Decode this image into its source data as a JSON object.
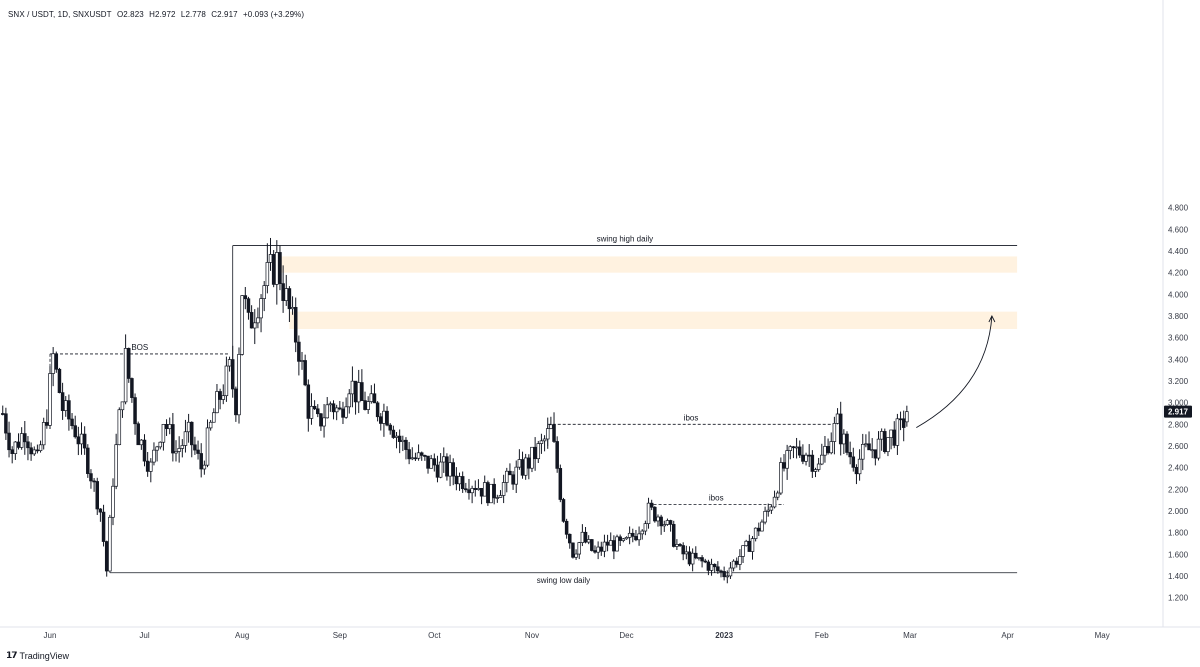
{
  "header": {
    "symbol": "SNX / USDT, 1D, SNXUSDT",
    "open": "O2.823",
    "high": "H2.972",
    "low": "L2.778",
    "close": "C2.917",
    "change": "+0.093 (+3.29%)"
  },
  "branding": {
    "logo_icon": "tradingview-logo-icon",
    "name": "TradingView"
  },
  "colors": {
    "candle": "#131722",
    "zone": "#fff2e0",
    "line": "#131722",
    "axis_text": "#363a45",
    "price_label_bg": "#131722"
  },
  "chart_data": {
    "type": "candlestick",
    "title": "SNX / USDT, 1D, SNXUSDT",
    "yticks": [
      "4.800",
      "4.600",
      "4.400",
      "4.200",
      "4.000",
      "3.800",
      "3.600",
      "3.400",
      "3.200",
      "3.000",
      "2.800",
      "2.600",
      "2.400",
      "2.200",
      "2.000",
      "1.800",
      "1.600",
      "1.400",
      "1.200"
    ],
    "ylim": [
      1.08,
      4.95
    ],
    "xticks": [
      {
        "label": "Jun",
        "date": "2022-06-01"
      },
      {
        "label": "Jul",
        "date": "2022-07-01"
      },
      {
        "label": "Aug",
        "date": "2022-08-01"
      },
      {
        "label": "Sep",
        "date": "2022-09-01"
      },
      {
        "label": "Oct",
        "date": "2022-10-01"
      },
      {
        "label": "Nov",
        "date": "2022-11-01"
      },
      {
        "label": "Dec",
        "date": "2022-12-01"
      },
      {
        "label": "2023",
        "date": "2023-01-01"
      },
      {
        "label": "Feb",
        "date": "2023-02-01"
      },
      {
        "label": "Mar",
        "date": "2023-03-01"
      },
      {
        "label": "Apr",
        "date": "2023-04-01"
      },
      {
        "label": "May",
        "date": "2023-05-01"
      }
    ],
    "last_price": "2.917",
    "path_points": [
      [
        "2022-05-17",
        2.9
      ],
      [
        "2022-05-20",
        2.55
      ],
      [
        "2022-05-24",
        2.75
      ],
      [
        "2022-05-28",
        2.45
      ],
      [
        "2022-05-31",
        2.9
      ],
      [
        "2022-06-02",
        3.42
      ],
      [
        "2022-06-05",
        2.95
      ],
      [
        "2022-06-09",
        2.75
      ],
      [
        "2022-06-13",
        2.45
      ],
      [
        "2022-06-17",
        2.0
      ],
      [
        "2022-06-19",
        1.45
      ],
      [
        "2022-06-21",
        2.3
      ],
      [
        "2022-06-25",
        3.4
      ],
      [
        "2022-06-29",
        2.7
      ],
      [
        "2022-07-03",
        2.4
      ],
      [
        "2022-07-07",
        2.85
      ],
      [
        "2022-07-11",
        2.55
      ],
      [
        "2022-07-15",
        2.7
      ],
      [
        "2022-07-19",
        2.4
      ],
      [
        "2022-07-23",
        2.9
      ],
      [
        "2022-07-28",
        3.3
      ],
      [
        "2022-07-30",
        3.0
      ],
      [
        "2022-08-01",
        4.05
      ],
      [
        "2022-08-03",
        3.7
      ],
      [
        "2022-08-06",
        3.95
      ],
      [
        "2022-08-09",
        4.15
      ],
      [
        "2022-08-12",
        4.3
      ],
      [
        "2022-08-15",
        3.95
      ],
      [
        "2022-08-19",
        3.5
      ],
      [
        "2022-08-22",
        2.95
      ],
      [
        "2022-08-25",
        2.8
      ],
      [
        "2022-08-29",
        3.0
      ],
      [
        "2022-09-01",
        2.9
      ],
      [
        "2022-09-04",
        3.2
      ],
      [
        "2022-09-08",
        3.0
      ],
      [
        "2022-09-12",
        2.95
      ],
      [
        "2022-09-16",
        2.9
      ],
      [
        "2022-09-20",
        2.65
      ],
      [
        "2022-09-24",
        2.5
      ],
      [
        "2022-09-28",
        2.45
      ],
      [
        "2022-10-04",
        2.4
      ],
      [
        "2022-10-09",
        2.3
      ],
      [
        "2022-10-14",
        2.25
      ],
      [
        "2022-10-19",
        2.15
      ],
      [
        "2022-10-23",
        2.25
      ],
      [
        "2022-10-27",
        2.35
      ],
      [
        "2022-10-31",
        2.45
      ],
      [
        "2022-11-04",
        2.6
      ],
      [
        "2022-11-07",
        2.75
      ],
      [
        "2022-11-09",
        2.4
      ],
      [
        "2022-11-11",
        1.95
      ],
      [
        "2022-11-14",
        1.62
      ],
      [
        "2022-11-17",
        1.75
      ],
      [
        "2022-11-21",
        1.6
      ],
      [
        "2022-11-25",
        1.7
      ],
      [
        "2022-11-30",
        1.68
      ],
      [
        "2022-12-04",
        1.8
      ],
      [
        "2022-12-08",
        2.0
      ],
      [
        "2022-12-12",
        1.95
      ],
      [
        "2022-12-15",
        1.8
      ],
      [
        "2022-12-18",
        1.62
      ],
      [
        "2022-12-22",
        1.55
      ],
      [
        "2022-12-26",
        1.52
      ],
      [
        "2022-12-29",
        1.46
      ],
      [
        "2023-01-01",
        1.42
      ],
      [
        "2023-01-04",
        1.52
      ],
      [
        "2023-01-08",
        1.65
      ],
      [
        "2023-01-12",
        1.85
      ],
      [
        "2023-01-15",
        2.0
      ],
      [
        "2023-01-19",
        2.35
      ],
      [
        "2023-01-23",
        2.55
      ],
      [
        "2023-01-27",
        2.55
      ],
      [
        "2023-01-31",
        2.4
      ],
      [
        "2023-02-03",
        2.65
      ],
      [
        "2023-02-06",
        2.8
      ],
      [
        "2023-02-09",
        2.55
      ],
      [
        "2023-02-12",
        2.45
      ],
      [
        "2023-02-15",
        2.55
      ],
      [
        "2023-02-19",
        2.6
      ],
      [
        "2023-02-23",
        2.7
      ],
      [
        "2023-02-26",
        2.75
      ],
      [
        "2023-02-28",
        2.917
      ]
    ],
    "annotations": {
      "swing_high": {
        "label": "swing high daily",
        "price": 4.45,
        "from": "2022-07-29",
        "to": "2023-04-04"
      },
      "swing_low": {
        "label": "swing low daily",
        "price": 1.43,
        "from": "2022-06-20",
        "to": "2023-04-04"
      },
      "bos": {
        "label": "BOS",
        "price": 3.45,
        "from": "2022-06-01",
        "to": "2022-07-28"
      },
      "ibos1": {
        "label": "ibos",
        "price": 2.8,
        "from": "2022-11-06",
        "to": "2023-02-05"
      },
      "ibos2": {
        "label": "ibos",
        "price": 2.06,
        "from": "2022-12-08",
        "to": "2023-01-20"
      },
      "zones": [
        {
          "from": "2022-08-11",
          "to": "2023-04-04",
          "low": 4.2,
          "high": 4.35
        },
        {
          "from": "2022-08-16",
          "to": "2023-04-04",
          "low": 3.68,
          "high": 3.84
        }
      ],
      "projection": {
        "from": [
          "2023-03-03",
          2.77
        ],
        "to": [
          "2023-03-27",
          3.8
        ]
      }
    }
  }
}
